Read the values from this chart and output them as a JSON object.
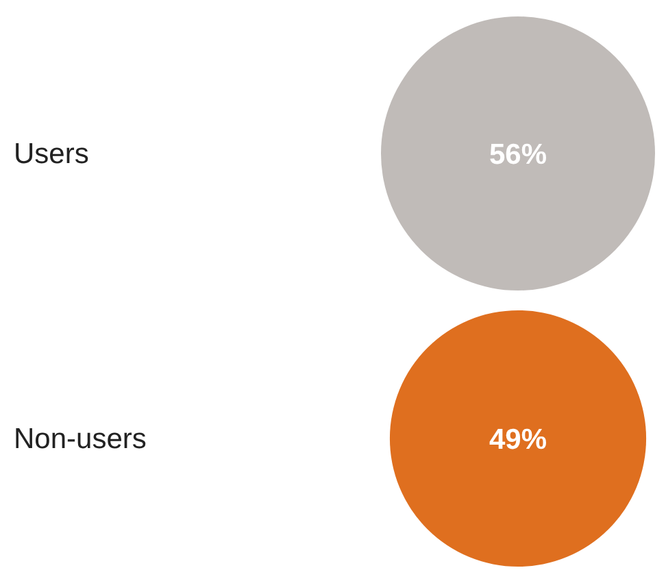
{
  "chart_data": {
    "type": "other",
    "categories": [
      "Users",
      "Non-users"
    ],
    "values": [
      56,
      49
    ],
    "value_labels": [
      "56%",
      "49%"
    ],
    "colors": [
      "#c0bbb8",
      "#df6f1f"
    ]
  }
}
